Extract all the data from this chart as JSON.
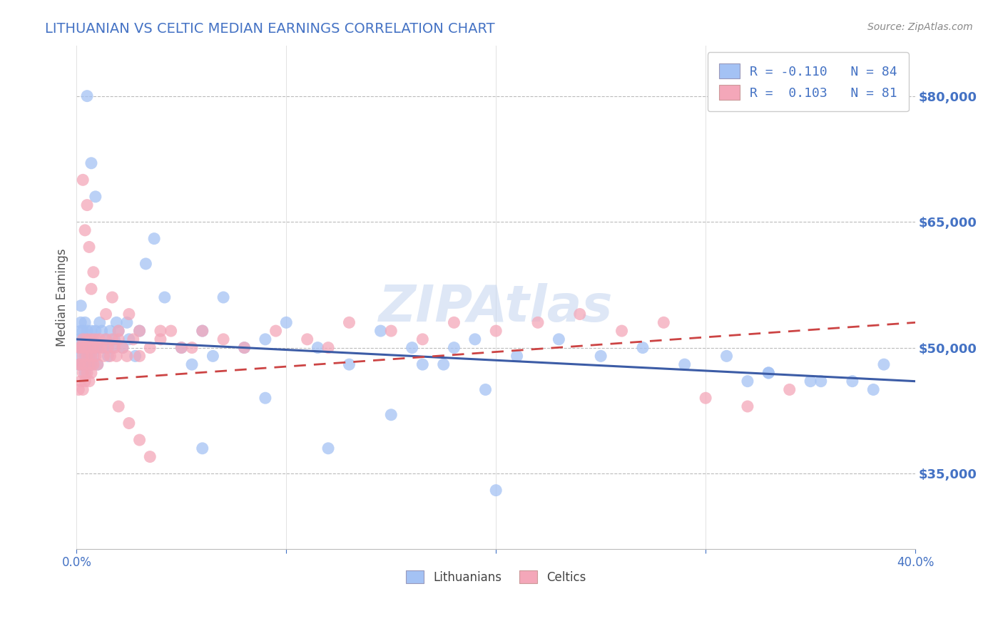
{
  "title": "LITHUANIAN VS CELTIC MEDIAN EARNINGS CORRELATION CHART",
  "source": "Source: ZipAtlas.com",
  "ylabel": "Median Earnings",
  "xlim": [
    0.0,
    0.4
  ],
  "ylim": [
    26000,
    86000
  ],
  "yticks": [
    35000,
    50000,
    65000,
    80000
  ],
  "ytick_labels": [
    "$35,000",
    "$50,000",
    "$65,000",
    "$80,000"
  ],
  "xticks": [
    0.0,
    0.1,
    0.2,
    0.3,
    0.4
  ],
  "xtick_labels": [
    "0.0%",
    "",
    "",
    "",
    "40.0%"
  ],
  "blue_color": "#a4c2f4",
  "pink_color": "#f4a7b9",
  "trend_blue_color": "#3c5ca6",
  "trend_pink_color": "#cc4444",
  "title_color": "#4472c4",
  "tick_color": "#4472c4",
  "watermark": "ZIPAtlas",
  "R_blue": -0.11,
  "N_blue": 84,
  "R_pink": 0.103,
  "N_pink": 81,
  "blue_trend_x0": 0.0,
  "blue_trend_y0": 51000,
  "blue_trend_x1": 0.4,
  "blue_trend_y1": 46000,
  "pink_trend_x0": 0.0,
  "pink_trend_y0": 46000,
  "pink_trend_x1": 0.4,
  "pink_trend_y1": 53000,
  "blue_x": [
    0.001,
    0.001,
    0.001,
    0.002,
    0.002,
    0.002,
    0.002,
    0.003,
    0.003,
    0.003,
    0.003,
    0.004,
    0.004,
    0.004,
    0.005,
    0.005,
    0.005,
    0.006,
    0.006,
    0.007,
    0.007,
    0.008,
    0.008,
    0.009,
    0.009,
    0.01,
    0.01,
    0.011,
    0.012,
    0.013,
    0.014,
    0.015,
    0.016,
    0.017,
    0.018,
    0.019,
    0.02,
    0.022,
    0.024,
    0.025,
    0.028,
    0.03,
    0.033,
    0.037,
    0.042,
    0.05,
    0.055,
    0.06,
    0.065,
    0.07,
    0.08,
    0.09,
    0.1,
    0.115,
    0.13,
    0.145,
    0.16,
    0.175,
    0.19,
    0.21,
    0.23,
    0.25,
    0.27,
    0.29,
    0.31,
    0.33,
    0.35,
    0.165,
    0.18,
    0.195,
    0.06,
    0.09,
    0.12,
    0.15,
    0.2,
    0.32,
    0.33,
    0.355,
    0.37,
    0.38,
    0.385,
    0.005,
    0.007,
    0.009
  ],
  "blue_y": [
    51000,
    50000,
    48000,
    52000,
    53000,
    55000,
    49000,
    50000,
    48000,
    52000,
    51000,
    49000,
    53000,
    47000,
    52000,
    50000,
    48000,
    51000,
    49000,
    52000,
    48000,
    51000,
    49000,
    50000,
    52000,
    50000,
    48000,
    53000,
    52000,
    50000,
    51000,
    49000,
    52000,
    50000,
    51000,
    53000,
    52000,
    50000,
    53000,
    51000,
    49000,
    52000,
    60000,
    63000,
    56000,
    50000,
    48000,
    52000,
    49000,
    56000,
    50000,
    51000,
    53000,
    50000,
    48000,
    52000,
    50000,
    48000,
    51000,
    49000,
    51000,
    49000,
    50000,
    48000,
    49000,
    47000,
    46000,
    48000,
    50000,
    45000,
    38000,
    44000,
    38000,
    42000,
    33000,
    46000,
    47000,
    46000,
    46000,
    45000,
    48000,
    80000,
    72000,
    68000
  ],
  "pink_x": [
    0.001,
    0.001,
    0.001,
    0.002,
    0.002,
    0.002,
    0.003,
    0.003,
    0.003,
    0.003,
    0.004,
    0.004,
    0.004,
    0.005,
    0.005,
    0.005,
    0.006,
    0.006,
    0.006,
    0.007,
    0.007,
    0.007,
    0.008,
    0.008,
    0.009,
    0.009,
    0.01,
    0.01,
    0.011,
    0.012,
    0.013,
    0.014,
    0.015,
    0.016,
    0.017,
    0.018,
    0.019,
    0.02,
    0.022,
    0.024,
    0.027,
    0.03,
    0.035,
    0.04,
    0.045,
    0.05,
    0.06,
    0.07,
    0.08,
    0.095,
    0.11,
    0.12,
    0.13,
    0.15,
    0.165,
    0.18,
    0.2,
    0.22,
    0.24,
    0.26,
    0.28,
    0.3,
    0.32,
    0.34,
    0.003,
    0.004,
    0.005,
    0.006,
    0.007,
    0.008,
    0.014,
    0.017,
    0.02,
    0.025,
    0.03,
    0.04,
    0.055,
    0.02,
    0.025,
    0.03,
    0.035
  ],
  "pink_y": [
    50000,
    48000,
    45000,
    50000,
    48000,
    46000,
    51000,
    49000,
    47000,
    45000,
    50000,
    48000,
    46000,
    51000,
    49000,
    47000,
    50000,
    48000,
    46000,
    51000,
    49000,
    47000,
    50000,
    48000,
    51000,
    49000,
    50000,
    48000,
    51000,
    50000,
    49000,
    51000,
    50000,
    49000,
    51000,
    50000,
    49000,
    51000,
    50000,
    49000,
    51000,
    52000,
    50000,
    51000,
    52000,
    50000,
    52000,
    51000,
    50000,
    52000,
    51000,
    50000,
    53000,
    52000,
    51000,
    53000,
    52000,
    53000,
    54000,
    52000,
    53000,
    44000,
    43000,
    45000,
    70000,
    64000,
    67000,
    62000,
    57000,
    59000,
    54000,
    56000,
    52000,
    54000,
    49000,
    52000,
    50000,
    43000,
    41000,
    39000,
    37000
  ]
}
